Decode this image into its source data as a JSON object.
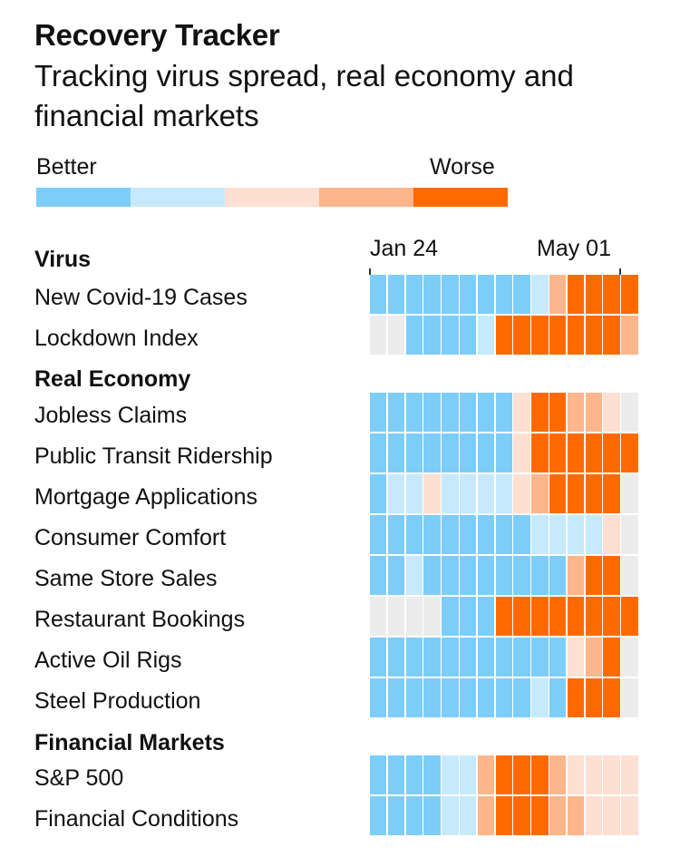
{
  "header": {
    "title": "Recovery Tracker",
    "subtitle": "Tracking virus spread, real economy and financial markets"
  },
  "legend": {
    "better_label": "Better",
    "worse_label": "Worse",
    "colors": [
      "#7dcdf9",
      "#c6eafb",
      "#fde0d2",
      "#fbb68c",
      "#ff6a00"
    ]
  },
  "colors": {
    "missing": "#ececec",
    "levels": [
      "#7dcdf9",
      "#c6eafb",
      "#fde0d2",
      "#fbb68c",
      "#ff6a00"
    ]
  },
  "chart_data": {
    "type": "heatmap",
    "x_tick_labels": [
      "Jan 24",
      "May 01"
    ],
    "scale": "1 = better ... 5 = worse, 0 = no data",
    "sections": [
      {
        "name": "Virus",
        "rows": [
          {
            "label": "New Covid-19 Cases",
            "values": [
              1,
              1,
              1,
              1,
              1,
              1,
              1,
              1,
              1,
              2,
              4,
              5,
              5,
              5,
              5
            ]
          },
          {
            "label": "Lockdown Index",
            "values": [
              0,
              0,
              1,
              1,
              1,
              1,
              2,
              5,
              5,
              5,
              5,
              5,
              5,
              5,
              4
            ]
          }
        ]
      },
      {
        "name": "Real Economy",
        "rows": [
          {
            "label": "Jobless Claims",
            "values": [
              1,
              1,
              1,
              1,
              1,
              1,
              1,
              1,
              3,
              5,
              5,
              4,
              4,
              3,
              0
            ]
          },
          {
            "label": "Public Transit Ridership",
            "values": [
              1,
              1,
              1,
              1,
              1,
              1,
              1,
              1,
              3,
              5,
              5,
              5,
              5,
              5,
              5
            ]
          },
          {
            "label": "Mortgage Applications",
            "values": [
              1,
              2,
              2,
              3,
              2,
              2,
              2,
              2,
              3,
              4,
              5,
              5,
              5,
              5,
              0
            ]
          },
          {
            "label": "Consumer Comfort",
            "values": [
              1,
              1,
              1,
              1,
              1,
              1,
              1,
              1,
              1,
              2,
              2,
              2,
              2,
              3,
              0
            ]
          },
          {
            "label": "Same Store Sales",
            "values": [
              1,
              1,
              2,
              1,
              1,
              1,
              1,
              1,
              1,
              1,
              1,
              4,
              5,
              5,
              0
            ]
          },
          {
            "label": "Restaurant Bookings",
            "values": [
              0,
              0,
              0,
              0,
              1,
              1,
              1,
              5,
              5,
              5,
              5,
              5,
              5,
              5,
              5
            ]
          },
          {
            "label": "Active Oil Rigs",
            "values": [
              1,
              1,
              1,
              1,
              1,
              1,
              1,
              1,
              1,
              1,
              1,
              3,
              4,
              5,
              0
            ]
          },
          {
            "label": "Steel Production",
            "values": [
              1,
              1,
              1,
              1,
              1,
              1,
              1,
              1,
              1,
              2,
              1,
              5,
              5,
              5,
              0
            ]
          }
        ]
      },
      {
        "name": "Financial Markets",
        "rows": [
          {
            "label": "S&P 500",
            "values": [
              1,
              1,
              1,
              1,
              2,
              2,
              4,
              5,
              5,
              5,
              4,
              3,
              3,
              3,
              3
            ]
          },
          {
            "label": "Financial Conditions",
            "values": [
              1,
              1,
              1,
              1,
              2,
              2,
              4,
              5,
              5,
              5,
              4,
              4,
              3,
              3,
              3
            ]
          }
        ]
      }
    ]
  }
}
